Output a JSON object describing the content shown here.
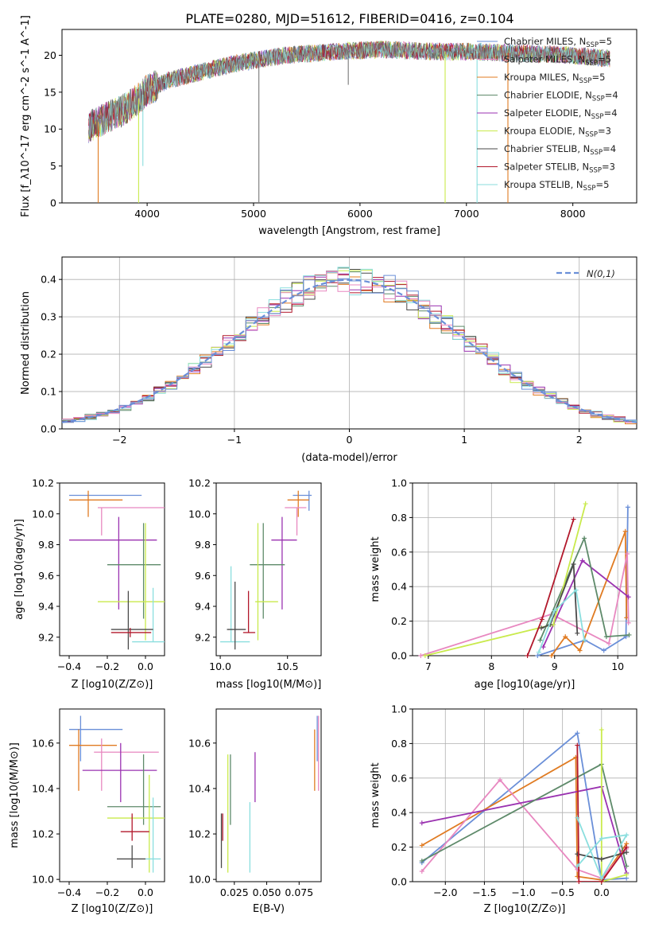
{
  "figure": {
    "title": "PLATE=0280, MJD=51612, FIBERID=0416, z=0.104"
  },
  "colors": {
    "blue": "#6a8fd8",
    "orange": "#e07b22",
    "pink": "#e888c0",
    "purple": "#9a32b0",
    "green": "#5e8a6a",
    "yellowgreen": "#c9ea4c",
    "cyan": "#8adede",
    "red": "#b2182b",
    "dark": "#4a4a4a",
    "gray": "#777777",
    "dashed": "#6a8fd8"
  },
  "chart_data": [
    {
      "id": "spectrum",
      "type": "line",
      "xlabel": "wavelength [Angstrom, rest frame]",
      "ylabel": "Flux [f_λ10^-17 erg cm^-2 s^-1 A^-1]",
      "xlim": [
        3200,
        8600
      ],
      "ylim": [
        0,
        23.5
      ],
      "xticks": [
        4000,
        5000,
        6000,
        7000,
        8000
      ],
      "yticks": [
        0,
        5,
        10,
        15,
        20
      ],
      "grid": false,
      "legend": "upper-right",
      "series": [
        {
          "name": "Chabrier MILES, N_SSP=5",
          "color": "#6a8fd8"
        },
        {
          "name": "Salpeter MILES, N_SSP=5",
          "color": "#e888c0"
        },
        {
          "name": "Kroupa MILES, N_SSP=5",
          "color": "#e07b22"
        },
        {
          "name": "Chabrier ELODIE, N_SSP=4",
          "color": "#5e8a6a"
        },
        {
          "name": "Salpeter ELODIE, N_SSP=4",
          "color": "#9a32b0"
        },
        {
          "name": "Kroupa ELODIE, N_SSP=3",
          "color": "#c9ea4c"
        },
        {
          "name": "Chabrier STELIB, N_SSP=4",
          "color": "#4a4a4a"
        },
        {
          "name": "Salpeter STELIB, N_SSP=3",
          "color": "#b2182b"
        },
        {
          "name": "Kroupa STELIB, N_SSP=5",
          "color": "#8adede"
        }
      ],
      "continuum": {
        "x": [
          3450,
          3600,
          3800,
          3950,
          4000,
          4200,
          4500,
          4800,
          5000,
          5300,
          5600,
          5900,
          6200,
          6500,
          6800,
          7100,
          7400,
          7700,
          8000,
          8300
        ],
        "y": [
          10.3,
          11.4,
          12.8,
          14.5,
          15.3,
          16.6,
          17.7,
          18.8,
          19.3,
          20.0,
          20.3,
          20.6,
          20.8,
          20.6,
          20.5,
          20.5,
          20.3,
          20.2,
          20.0,
          19.6
        ]
      },
      "dips": [
        {
          "x": 3540,
          "depth_to": 0,
          "color": "#e07b22"
        },
        {
          "x": 3920,
          "depth_to": 0,
          "color": "#c9ea4c"
        },
        {
          "x": 3960,
          "depth_to": 5,
          "color": "#8adede"
        },
        {
          "x": 5050,
          "depth_to": 0,
          "color": "#777777"
        },
        {
          "x": 6800,
          "depth_to": 0,
          "color": "#c9ea4c"
        },
        {
          "x": 7100,
          "depth_to": 0,
          "color": "#8adede"
        },
        {
          "x": 7390,
          "depth_to": 0,
          "color": "#e07b22"
        },
        {
          "x": 5890,
          "depth_to": 16,
          "color": "#777777"
        }
      ]
    },
    {
      "id": "residuals",
      "type": "line",
      "xlabel": "(data-model)/error",
      "ylabel": "Normed distribution",
      "xlim": [
        -2.5,
        2.5
      ],
      "ylim": [
        0,
        0.46
      ],
      "xticks": [
        -2,
        -1,
        0,
        1,
        2
      ],
      "yticks": [
        0,
        0.1,
        0.2,
        0.3,
        0.4
      ],
      "grid": true,
      "legend": "upper-right",
      "legend_label": "N(0,1)",
      "bins": {
        "start": -2.5,
        "width": 0.1,
        "count": 50
      },
      "base_colors": [
        "#e07b22",
        "#5e8a6a",
        "#9a32b0",
        "#c9ea4c",
        "#4a4a4a",
        "#b2182b",
        "#8adede",
        "#e888c0",
        "#6a8fd8"
      ]
    },
    {
      "id": "age_vs_Z",
      "type": "scatter",
      "xlabel": "Z [log10(Z/Z⊙)]",
      "ylabel": "age [log10(age/yr)]",
      "xlim": [
        -0.45,
        0.1
      ],
      "ylim": [
        9.08,
        10.2
      ],
      "xticks": [
        -0.4,
        -0.2,
        0.0
      ],
      "yticks": [
        9.2,
        9.4,
        9.6,
        9.8,
        10.0,
        10.2
      ],
      "points": [
        {
          "x": -0.2,
          "y": 10.12,
          "xl": -0.4,
          "xr": -0.02,
          "yl": 10.12,
          "yu": 10.12,
          "c": "#6a8fd8",
          "vx": -0.35,
          "vyl": 10.02,
          "vyu": 10.15
        },
        {
          "x": -0.3,
          "y": 10.09,
          "xl": -0.4,
          "xr": -0.12,
          "yl": 9.98,
          "yu": 10.15,
          "c": "#e07b22"
        },
        {
          "x": -0.08,
          "y": 10.04,
          "xl": -0.25,
          "xr": 0.12,
          "yl": 9.86,
          "yu": 10.04,
          "c": "#e888c0",
          "vx": -0.23
        },
        {
          "x": -0.1,
          "y": 9.83,
          "xl": -0.4,
          "xr": 0.06,
          "yl": 9.38,
          "yu": 9.98,
          "c": "#9a32b0",
          "vx": -0.14
        },
        {
          "x": -0.05,
          "y": 9.67,
          "xl": -0.2,
          "xr": 0.08,
          "yl": 9.32,
          "yu": 9.94,
          "c": "#5e8a6a",
          "vx": -0.01
        },
        {
          "x": 0.0,
          "y": 9.43,
          "xl": -0.25,
          "xr": 0.13,
          "yl": 9.18,
          "yu": 9.94,
          "c": "#c9ea4c"
        },
        {
          "x": 0.02,
          "y": 9.17,
          "xl": -0.07,
          "xr": 0.11,
          "yl": 9.17,
          "yu": 9.52,
          "c": "#8adede",
          "vx": 0.04
        },
        {
          "x": -0.09,
          "y": 9.25,
          "xl": -0.18,
          "xr": 0.04,
          "yl": 9.12,
          "yu": 9.5,
          "c": "#4a4a4a",
          "vx": -0.09
        },
        {
          "x": -0.06,
          "y": 9.23,
          "xl": -0.18,
          "xr": 0.03,
          "yl": 9.2,
          "yu": 9.26,
          "c": "#b2182b",
          "vx": -0.08
        }
      ]
    },
    {
      "id": "age_vs_mass",
      "type": "scatter",
      "xlabel": "mass [log10(M/M⊙)]",
      "ylabel": "",
      "xlim": [
        9.97,
        10.75
      ],
      "ylim": [
        9.08,
        10.2
      ],
      "xticks": [
        10.0,
        10.5
      ],
      "yticks": [
        9.2,
        9.4,
        9.6,
        9.8,
        10.0,
        10.2
      ],
      "points": [
        {
          "x": 10.6,
          "y": 10.12,
          "xl": 10.54,
          "xr": 10.68,
          "yl": 10.02,
          "yu": 10.15,
          "c": "#6a8fd8",
          "vx": 10.66
        },
        {
          "x": 10.58,
          "y": 10.09,
          "xl": 10.5,
          "xr": 10.66,
          "yl": 9.98,
          "yu": 10.15,
          "c": "#e07b22"
        },
        {
          "x": 10.56,
          "y": 10.04,
          "xl": 10.48,
          "xr": 10.64,
          "yl": 9.86,
          "yu": 10.04,
          "c": "#e888c0",
          "vx": 10.57
        },
        {
          "x": 10.48,
          "y": 9.83,
          "xl": 10.38,
          "xr": 10.57,
          "yl": 9.38,
          "yu": 9.98,
          "c": "#9a32b0",
          "vx": 10.46
        },
        {
          "x": 10.33,
          "y": 9.67,
          "xl": 10.22,
          "xr": 10.48,
          "yl": 9.32,
          "yu": 9.94,
          "c": "#5e8a6a",
          "vx": 10.32
        },
        {
          "x": 10.28,
          "y": 9.43,
          "xl": 10.26,
          "xr": 10.43,
          "yl": 9.18,
          "yu": 9.94,
          "c": "#c9ea4c"
        },
        {
          "x": 10.08,
          "y": 9.17,
          "xl": 10.0,
          "xr": 10.22,
          "yl": 9.17,
          "yu": 9.66,
          "c": "#8adede"
        },
        {
          "x": 10.11,
          "y": 9.25,
          "xl": 10.05,
          "xr": 10.19,
          "yl": 9.12,
          "yu": 9.56,
          "c": "#4a4a4a"
        },
        {
          "x": 10.21,
          "y": 9.23,
          "xl": 10.17,
          "xr": 10.26,
          "yl": 9.23,
          "yu": 9.5,
          "c": "#b2182b"
        }
      ]
    },
    {
      "id": "mass_weight_vs_age",
      "type": "line",
      "xlabel": "age [log10(age/yr)]",
      "ylabel": "mass weight",
      "xlim": [
        6.75,
        10.3
      ],
      "ylim": [
        0,
        1.0
      ],
      "xticks": [
        7,
        8,
        9,
        10
      ],
      "yticks": [
        0,
        0.2,
        0.4,
        0.6,
        0.8,
        1.0
      ],
      "grid": true,
      "series": [
        {
          "c": "#6a8fd8",
          "x": [
            8.73,
            9.48,
            9.78,
            10.13,
            10.16
          ],
          "y": [
            0.0,
            0.09,
            0.03,
            0.11,
            0.86
          ]
        },
        {
          "c": "#e07b22",
          "x": [
            8.95,
            9.17,
            9.4,
            10.12,
            10.14
          ],
          "y": [
            0.0,
            0.11,
            0.03,
            0.72,
            0.22
          ]
        },
        {
          "c": "#e888c0",
          "x": [
            6.88,
            8.95,
            9.86,
            10.15,
            10.17
          ],
          "y": [
            0.0,
            0.24,
            0.07,
            0.59,
            0.19
          ]
        },
        {
          "c": "#9a32b0",
          "x": [
            8.82,
            9.44,
            10.17
          ],
          "y": [
            0.05,
            0.55,
            0.34
          ]
        },
        {
          "c": "#5e8a6a",
          "x": [
            8.77,
            9.47,
            9.82,
            10.18
          ],
          "y": [
            0.09,
            0.68,
            0.11,
            0.12
          ]
        },
        {
          "c": "#c9ea4c",
          "x": [
            6.95,
            8.98,
            9.49
          ],
          "y": [
            0.0,
            0.18,
            0.88
          ]
        },
        {
          "c": "#4a4a4a",
          "x": [
            8.79,
            8.93,
            9.3,
            9.36
          ],
          "y": [
            0.16,
            0.18,
            0.53,
            0.13
          ]
        },
        {
          "c": "#b2182b",
          "x": [
            8.57,
            8.8,
            9.3
          ],
          "y": [
            0.0,
            0.21,
            0.79
          ]
        },
        {
          "c": "#8adede",
          "x": [
            8.75,
            9.0,
            9.34,
            9.47
          ],
          "y": [
            0.02,
            0.26,
            0.38,
            0.09
          ]
        }
      ]
    },
    {
      "id": "mass_vs_Z",
      "type": "scatter",
      "xlabel": "Z [log10(Z/Z⊙)]",
      "ylabel": "mass [log10(M/M⊙)]",
      "xlim": [
        -0.45,
        0.1
      ],
      "ylim": [
        9.99,
        10.75
      ],
      "xticks": [
        -0.4,
        -0.2,
        0.0
      ],
      "yticks": [
        10.0,
        10.2,
        10.4,
        10.6
      ],
      "points": [
        {
          "x": -0.34,
          "y": 10.66,
          "xl": -0.4,
          "xr": -0.12,
          "yl": 10.52,
          "yu": 10.72,
          "c": "#6a8fd8"
        },
        {
          "x": -0.35,
          "y": 10.59,
          "xl": -0.4,
          "xr": -0.15,
          "yl": 10.39,
          "yu": 10.66,
          "c": "#e07b22"
        },
        {
          "x": -0.23,
          "y": 10.56,
          "xl": -0.27,
          "xr": 0.07,
          "yl": 10.39,
          "yu": 10.62,
          "c": "#e888c0"
        },
        {
          "x": -0.13,
          "y": 10.48,
          "xl": -0.33,
          "xr": 0.06,
          "yl": 10.34,
          "yu": 10.6,
          "c": "#9a32b0"
        },
        {
          "x": -0.05,
          "y": 10.32,
          "xl": -0.2,
          "xr": 0.08,
          "yl": 10.24,
          "yu": 10.55,
          "c": "#5e8a6a",
          "vx": -0.01
        },
        {
          "x": 0.03,
          "y": 10.27,
          "xl": -0.2,
          "xr": 0.12,
          "yl": 10.03,
          "yu": 10.46,
          "c": "#c9ea4c",
          "vx": 0.02
        },
        {
          "x": 0.04,
          "y": 10.09,
          "xl": 0.0,
          "xr": 0.08,
          "yl": 10.03,
          "yu": 10.36,
          "c": "#8adede",
          "vx": 0.04
        },
        {
          "x": -0.06,
          "y": 10.09,
          "xl": -0.15,
          "xr": 0.0,
          "yl": 10.05,
          "yu": 10.15,
          "c": "#4a4a4a",
          "vx": -0.07
        },
        {
          "x": -0.06,
          "y": 10.21,
          "xl": -0.13,
          "xr": 0.02,
          "yl": 10.17,
          "yu": 10.29,
          "c": "#b2182b",
          "vx": -0.07
        }
      ]
    },
    {
      "id": "mass_vs_EBV",
      "type": "scatter",
      "xlabel": "E(B-V)",
      "ylabel": "",
      "xlim": [
        0.011,
        0.092
      ],
      "ylim": [
        9.99,
        10.75
      ],
      "xticks": [
        0.025,
        0.05,
        0.075
      ],
      "xtick_labels": [
        "0.025",
        "0.050",
        "0.075"
      ],
      "yticks": [
        10.0,
        10.2,
        10.4,
        10.6
      ],
      "points": [
        {
          "x": 0.089,
          "yl": 10.52,
          "yu": 10.72,
          "c": "#6a8fd8"
        },
        {
          "x": 0.087,
          "yl": 10.39,
          "yu": 10.66,
          "c": "#e07b22"
        },
        {
          "x": 0.09,
          "yl": 10.39,
          "yu": 10.72,
          "c": "#e888c0"
        },
        {
          "x": 0.041,
          "yl": 10.34,
          "yu": 10.56,
          "c": "#9a32b0"
        },
        {
          "x": 0.022,
          "yl": 10.24,
          "yu": 10.55,
          "c": "#5e8a6a"
        },
        {
          "x": 0.02,
          "yl": 10.03,
          "yu": 10.55,
          "c": "#c9ea4c"
        },
        {
          "x": 0.037,
          "yl": 10.03,
          "yu": 10.34,
          "c": "#8adede"
        },
        {
          "x": 0.015,
          "yl": 10.05,
          "yu": 10.29,
          "c": "#4a4a4a"
        },
        {
          "x": 0.016,
          "yl": 10.17,
          "yu": 10.29,
          "c": "#b2182b"
        }
      ]
    },
    {
      "id": "mass_weight_vs_Z",
      "type": "line",
      "xlabel": "Z [log10(Z/Z⊙)]",
      "ylabel": "mass weight",
      "xlim": [
        -2.42,
        0.45
      ],
      "ylim": [
        0,
        1.0
      ],
      "xticks": [
        -2.0,
        -1.5,
        -1.0,
        -0.5,
        0.0
      ],
      "xtick_labels": [
        "−2.0",
        "−1.5",
        "−1.0",
        "−0.5",
        "0.0"
      ],
      "yticks": [
        0,
        0.2,
        0.4,
        0.6,
        0.8,
        1.0
      ],
      "grid": true,
      "series": [
        {
          "c": "#6a8fd8",
          "x": [
            -2.3,
            -0.31,
            0.0,
            0.32
          ],
          "y": [
            0.11,
            0.86,
            0.01,
            0.02
          ]
        },
        {
          "c": "#e07b22",
          "x": [
            -2.3,
            -0.33,
            -0.31,
            0.0,
            0.32
          ],
          "y": [
            0.21,
            0.72,
            0.03,
            0.01,
            0.22
          ]
        },
        {
          "c": "#e888c0",
          "x": [
            -2.3,
            -1.3,
            -0.31,
            0.0,
            0.32
          ],
          "y": [
            0.06,
            0.59,
            0.07,
            0.02,
            0.19
          ]
        },
        {
          "c": "#9a32b0",
          "x": [
            -2.3,
            0.0,
            0.32
          ],
          "y": [
            0.34,
            0.55,
            0.05
          ]
        },
        {
          "c": "#5e8a6a",
          "x": [
            -2.3,
            0.0,
            0.32
          ],
          "y": [
            0.12,
            0.68,
            0.09
          ]
        },
        {
          "c": "#c9ea4c",
          "x": [
            0.0,
            0.0,
            0.32
          ],
          "y": [
            0.88,
            0.0,
            0.04
          ]
        },
        {
          "c": "#4a4a4a",
          "x": [
            -0.31,
            0.0,
            0.32
          ],
          "y": [
            0.16,
            0.13,
            0.17
          ]
        },
        {
          "c": "#b2182b",
          "x": [
            -0.31,
            -0.29,
            0.0,
            0.32
          ],
          "y": [
            0.79,
            0.0,
            0.0,
            0.2
          ]
        },
        {
          "c": "#8adede",
          "x": [
            -0.31,
            0.0,
            0.32,
            0.0,
            -0.31
          ],
          "y": [
            0.09,
            0.25,
            0.27,
            0.02,
            0.37
          ]
        }
      ]
    }
  ]
}
